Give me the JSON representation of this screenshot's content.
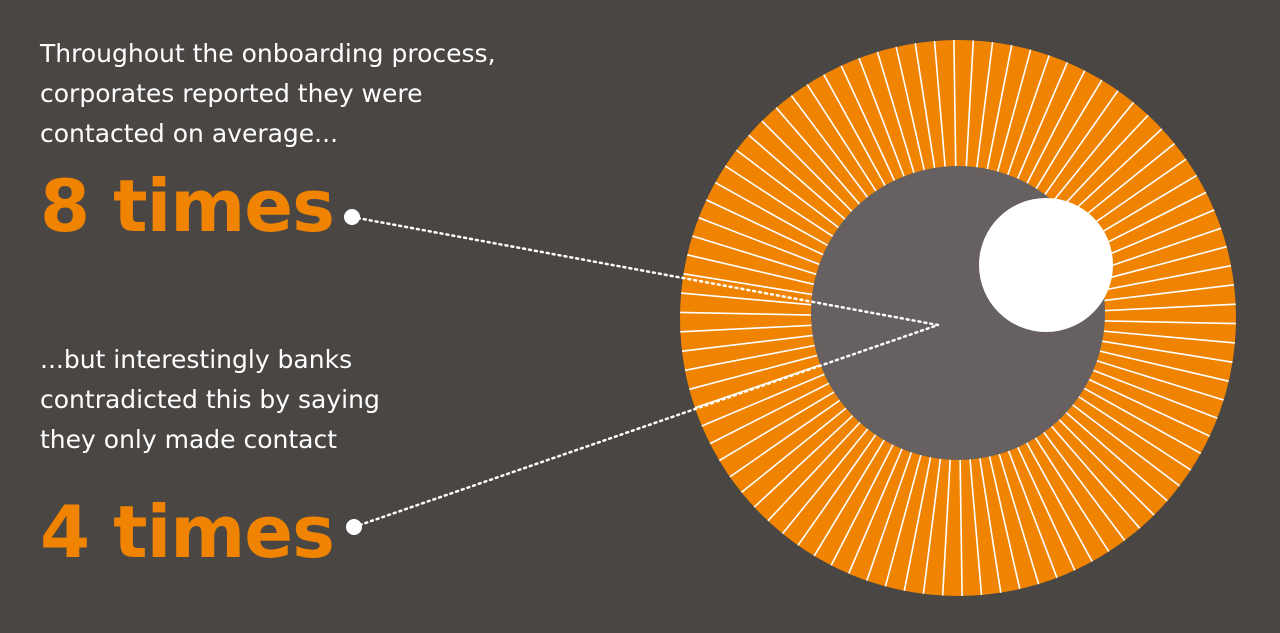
{
  "colors": {
    "background": "#4a4644",
    "accent": "#f08300",
    "inner_disc": "#666160",
    "text": "#ffffff"
  },
  "corporates": {
    "lines": [
      "Throughout the onboarding process,",
      "corporates reported they were",
      "contacted on average..."
    ],
    "highlight": "8 times"
  },
  "banks": {
    "lines": [
      "...but interestingly banks",
      "contradicted this by saying",
      "they only made contact"
    ],
    "highlight": "4 times"
  },
  "graphic": {
    "icon": "eye-iris-icon",
    "ray_count": 90
  }
}
